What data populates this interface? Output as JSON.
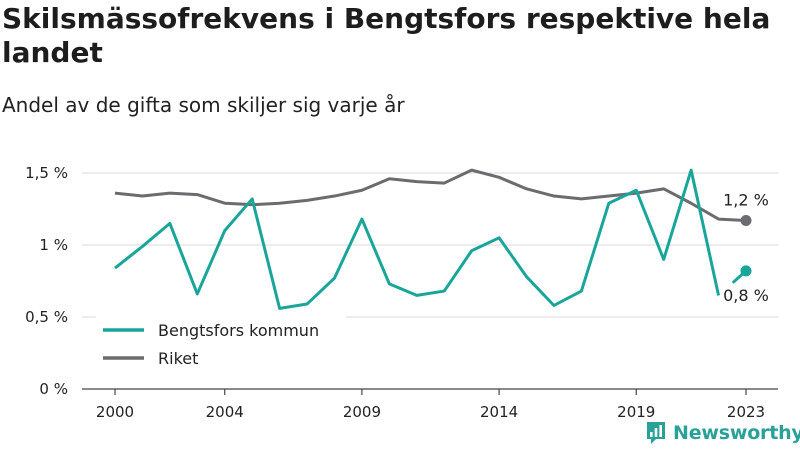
{
  "title": "Skilsmässofrekvens i Bengtsfors respektive hela landet",
  "subtitle": "Andel av de gifta som skiljer sig varje år",
  "brand": {
    "name": "Newsworthy",
    "icon": "newsworthy-logo-icon",
    "color": "#2aa198"
  },
  "chart_data": {
    "type": "line",
    "x": [
      2000,
      2001,
      2002,
      2003,
      2004,
      2005,
      2006,
      2007,
      2008,
      2009,
      2010,
      2011,
      2012,
      2013,
      2014,
      2015,
      2016,
      2017,
      2018,
      2019,
      2020,
      2021,
      2022,
      2023
    ],
    "xticks": [
      2000,
      2004,
      2009,
      2014,
      2019,
      2023
    ],
    "yticks": [
      0,
      0.5,
      1,
      1.5
    ],
    "ytick_labels": [
      "0 %",
      "0,5 %",
      "1 %",
      "1,5 %"
    ],
    "ylim": [
      0,
      1.5
    ],
    "grid": true,
    "legend_position": "bottom-left",
    "series": [
      {
        "name": "Bengtsfors kommun",
        "color": "#1aa59a",
        "values": [
          0.84,
          0.99,
          1.15,
          0.66,
          1.1,
          1.32,
          0.56,
          0.59,
          0.77,
          1.18,
          0.73,
          0.65,
          0.68,
          0.96,
          1.05,
          0.78,
          0.58,
          0.68,
          1.29,
          1.38,
          0.9,
          1.52,
          0.65,
          0.82
        ],
        "end_label": "0,8 %"
      },
      {
        "name": "Riket",
        "color": "#6c6b70",
        "values": [
          1.36,
          1.34,
          1.36,
          1.35,
          1.29,
          1.28,
          1.29,
          1.31,
          1.34,
          1.38,
          1.46,
          1.44,
          1.43,
          1.52,
          1.47,
          1.39,
          1.34,
          1.32,
          1.34,
          1.36,
          1.39,
          1.29,
          1.18,
          1.17
        ],
        "end_label": "1,2 %"
      }
    ]
  }
}
